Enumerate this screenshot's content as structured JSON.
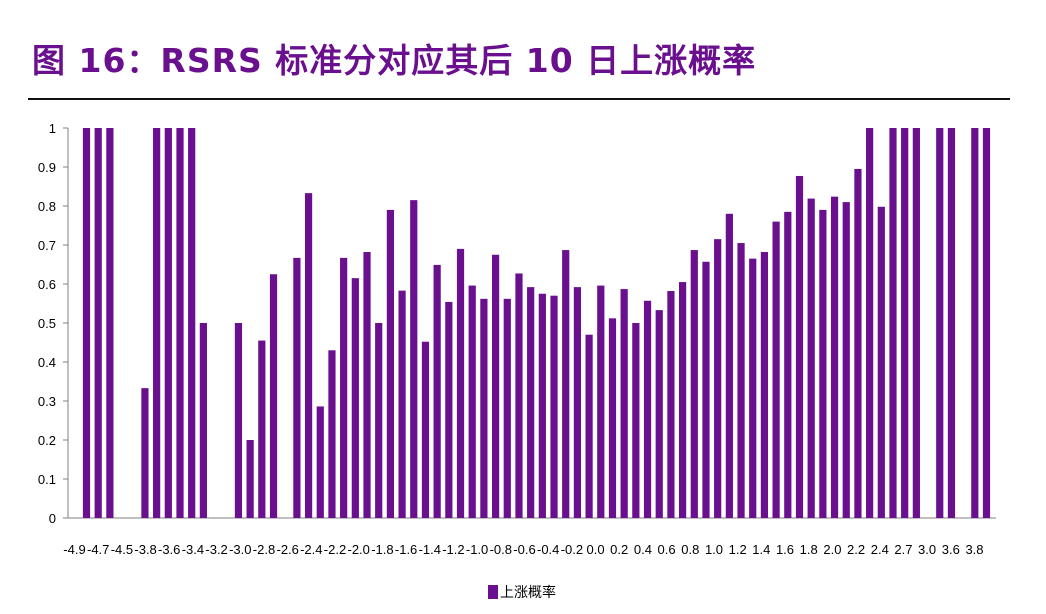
{
  "figure": {
    "title": "图 16：RSRS 标准分对应其后 10 日上涨概率"
  },
  "colors": {
    "bar": "#6a0f8e",
    "axis": "#808080",
    "title": "#6a0f8e"
  },
  "chart_data": {
    "type": "bar",
    "title": "",
    "xlabel": "",
    "ylabel": "",
    "ylim": [
      0,
      1
    ],
    "yticks": [
      "0",
      "0.1",
      "0.2",
      "0.3",
      "0.4",
      "0.5",
      "0.6",
      "0.7",
      "0.8",
      "0.9",
      "1"
    ],
    "xtick_labels": [
      "-4.9",
      "-4.7",
      "-4.5",
      "-3.8",
      "-3.6",
      "-3.4",
      "-3.2",
      "-3.0",
      "-2.8",
      "-2.6",
      "-2.4",
      "-2.2",
      "-2.0",
      "-1.8",
      "-1.6",
      "-1.4",
      "-1.2",
      "-1.0",
      "-0.8",
      "-0.6",
      "-0.4",
      "-0.2",
      "0.0",
      "0.2",
      "0.4",
      "0.6",
      "0.8",
      "1.0",
      "1.2",
      "1.4",
      "1.6",
      "1.8",
      "2.0",
      "2.2",
      "2.4",
      "2.7",
      "3.0",
      "3.6",
      "3.8"
    ],
    "legend_position": "bottom-center",
    "grid": false,
    "series": [
      {
        "name": "上涨概率",
        "values": [
          1,
          1,
          1,
          0,
          0,
          0.333,
          1,
          1,
          1,
          1,
          0.5,
          0,
          0,
          0.5,
          0.2,
          0.455,
          0.625,
          0,
          0.667,
          0.833,
          0.286,
          0.43,
          0.667,
          0.615,
          0.682,
          0.5,
          0.79,
          0.583,
          0.815,
          0.452,
          0.649,
          0.554,
          0.69,
          0.596,
          0.562,
          0.675,
          0.562,
          0.627,
          0.592,
          0.575,
          0.57,
          0.687,
          0.592,
          0.47,
          0.596,
          0.512,
          0.587,
          0.5,
          0.557,
          0.533,
          0.582,
          0.605,
          0.687,
          0.657,
          0.715,
          0.78,
          0.705,
          0.665,
          0.682,
          0.76,
          0.785,
          0.877,
          0.819,
          0.79,
          0.824,
          0.81,
          0.895,
          1,
          0.798,
          1,
          1,
          1,
          0,
          1,
          1,
          0,
          1,
          1
        ]
      }
    ]
  }
}
